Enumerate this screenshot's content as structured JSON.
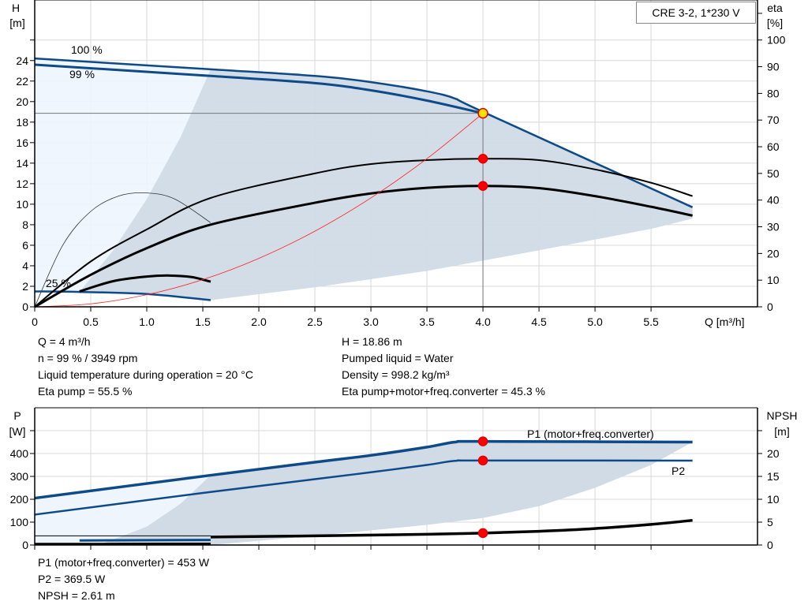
{
  "title_box": "CRE 3-2, 1*230 V",
  "top_info": {
    "left": [
      "Q = 4 m³/h",
      "n = 99 % / 3949 rpm",
      "Liquid temperature during operation = 20 °C",
      "Eta pump = 55.5 %"
    ],
    "right": [
      "H = 18.86 m",
      "Pumped liquid = Water",
      "Density = 998.2 kg/m³",
      "Eta pump+motor+freq.converter = 45.3 %"
    ]
  },
  "bottom_info": [
    "P1 (motor+freq.converter) = 453 W",
    "P2 = 369.5 W",
    "NPSH = 2.61 m"
  ],
  "colors": {
    "curve_blue": "#0d4a87",
    "region_gray": "#d0dbe6",
    "region_light": "#eef5fd",
    "duty_point": "#ff0000",
    "system_curve": "#ff2020",
    "grid": "#d8d8d8"
  },
  "chart_data": [
    {
      "type": "line",
      "name": "head-chart",
      "ylabel": "H",
      "yunit": "[m]",
      "y2label": "eta",
      "y2unit": "[%]",
      "xlabel": "Q [m³/h]",
      "xlim": [
        0,
        6.45
      ],
      "ylim": [
        0,
        29.9
      ],
      "y2lim": [
        0,
        115
      ],
      "xticks": [
        0,
        0.5,
        1.0,
        1.5,
        2.0,
        2.5,
        3.0,
        3.5,
        4.0,
        4.5,
        5.0,
        5.5
      ],
      "xtick_labels": [
        "0",
        "0.5",
        "1.0",
        "1.5",
        "2.0",
        "2.5",
        "3.0",
        "3.5",
        "4.0",
        "4.5",
        "5.0",
        "5.5"
      ],
      "yticks": [
        0,
        2,
        4,
        6,
        8,
        10,
        12,
        14,
        16,
        18,
        20,
        22,
        24,
        26
      ],
      "ytick_labels": [
        "0",
        "2",
        "4",
        "6",
        "8",
        "10",
        "12",
        "14",
        "16",
        "18",
        "20",
        "22",
        "24",
        ""
      ],
      "y2ticks": [
        0,
        10,
        20,
        30,
        40,
        50,
        60,
        70,
        80,
        90,
        100,
        110
      ],
      "y2tick_labels": [
        "0",
        "10",
        "20",
        "30",
        "40",
        "50",
        "60",
        "70",
        "80",
        "90",
        "100",
        ""
      ],
      "grid": true,
      "curve_labels": [
        "100 %",
        "99 %",
        "25 %"
      ],
      "series": [
        {
          "id": "h-100",
          "axis": "y",
          "points": [
            [
              0,
              24.2
            ],
            [
              1.57,
              23.15
            ],
            [
              2.5,
              22.5
            ],
            [
              3.0,
              21.9
            ],
            [
              3.5,
              21.0
            ],
            [
              3.75,
              20.3
            ],
            [
              4.0,
              19.0
            ],
            [
              5.87,
              9.7
            ]
          ]
        },
        {
          "id": "h-99",
          "axis": "y",
          "points": [
            [
              0,
              23.6
            ],
            [
              1.57,
              22.5
            ],
            [
              2.5,
              21.8
            ],
            [
              3.0,
              21.1
            ],
            [
              3.5,
              20.1
            ],
            [
              4.0,
              18.86
            ]
          ]
        },
        {
          "id": "h-25",
          "axis": "y",
          "points": [
            [
              0,
              1.5
            ],
            [
              0.4,
              1.45
            ],
            [
              1.0,
              1.25
            ],
            [
              1.57,
              0.65
            ]
          ]
        },
        {
          "id": "eta-pump",
          "axis": "y2",
          "points": [
            [
              0,
              0
            ],
            [
              0.5,
              17
            ],
            [
              1.0,
              29
            ],
            [
              1.57,
              40.8
            ],
            [
              2.5,
              50
            ],
            [
              3.0,
              53.5
            ],
            [
              3.5,
              55
            ],
            [
              4.0,
              55.5
            ],
            [
              4.5,
              55
            ],
            [
              5.0,
              51.5
            ],
            [
              5.5,
              46.5
            ],
            [
              5.87,
              41.5
            ]
          ]
        },
        {
          "id": "eta-total",
          "axis": "y2",
          "points": [
            [
              0,
              0
            ],
            [
              0.5,
              12
            ],
            [
              1.0,
              22
            ],
            [
              1.57,
              30.8
            ],
            [
              2.5,
              39
            ],
            [
              3.0,
              42.5
            ],
            [
              3.5,
              44.6
            ],
            [
              4.0,
              45.3
            ],
            [
              4.5,
              44.5
            ],
            [
              5.0,
              41.5
            ],
            [
              5.5,
              37.5
            ],
            [
              5.87,
              34.2
            ]
          ]
        },
        {
          "id": "eta-pump-25",
          "axis": "y",
          "points": [
            [
              0,
              0
            ],
            [
              0.25,
              6
            ],
            [
              0.5,
              9.3
            ],
            [
              0.75,
              10.8
            ],
            [
              1.0,
              11.1
            ],
            [
              1.25,
              10.5
            ],
            [
              1.57,
              8.2
            ]
          ]
        },
        {
          "id": "eta-total-25",
          "axis": "y",
          "points": [
            [
              0.4,
              1.5
            ],
            [
              0.7,
              2.5
            ],
            [
              1.0,
              2.95
            ],
            [
              1.2,
              3.05
            ],
            [
              1.4,
              2.9
            ],
            [
              1.57,
              2.45
            ]
          ]
        },
        {
          "id": "system-curve",
          "axis": "y",
          "points": [
            [
              0,
              0
            ],
            [
              0.5,
              0.29
            ],
            [
              1.0,
              1.18
            ],
            [
              1.5,
              2.65
            ],
            [
              2.0,
              4.72
            ],
            [
              2.5,
              7.37
            ],
            [
              3.0,
              10.61
            ],
            [
              3.5,
              14.44
            ],
            [
              4.0,
              18.86
            ]
          ]
        }
      ],
      "duty_points": [
        {
          "q": 4.0,
          "h": 18.86
        },
        {
          "q": 4.0,
          "eta": 55.5
        },
        {
          "q": 4.0,
          "eta": 45.3
        }
      ]
    },
    {
      "type": "line",
      "name": "power-chart",
      "ylabel": "P",
      "yunit": "[W]",
      "y2label": "NPSH",
      "y2unit": "[m]",
      "xlim": [
        0,
        6.45
      ],
      "ylim": [
        0,
        600
      ],
      "y2lim": [
        0,
        30
      ],
      "yticks": [
        0,
        100,
        200,
        300,
        400,
        500
      ],
      "ytick_labels": [
        "0",
        "100",
        "200",
        "300",
        "400",
        ""
      ],
      "y2ticks": [
        0,
        5,
        10,
        15,
        20,
        25
      ],
      "y2tick_labels": [
        "0",
        "5",
        "10",
        "15",
        "20",
        ""
      ],
      "xticks": [
        0,
        0.5,
        1.0,
        1.5,
        2.0,
        2.5,
        3.0,
        3.5,
        4.0,
        4.5,
        5.0,
        5.5
      ],
      "grid": true,
      "curve_labels": [
        "P1 (motor+freq.converter)",
        "P2"
      ],
      "series": [
        {
          "id": "p1",
          "axis": "y",
          "points": [
            [
              0,
              205
            ],
            [
              1.57,
              305
            ],
            [
              2.5,
              362
            ],
            [
              3.0,
              392
            ],
            [
              3.5,
              428
            ],
            [
              3.75,
              450
            ],
            [
              4.0,
              453
            ],
            [
              5.87,
              450
            ]
          ]
        },
        {
          "id": "p2",
          "axis": "y",
          "points": [
            [
              0,
              133
            ],
            [
              1.57,
              232
            ],
            [
              2.5,
              288
            ],
            [
              3.0,
              318
            ],
            [
              3.5,
              350
            ],
            [
              3.75,
              368
            ],
            [
              4.0,
              369.5
            ],
            [
              5.87,
              369
            ]
          ]
        },
        {
          "id": "npsh",
          "axis": "y2",
          "points": [
            [
              1.57,
              1.75
            ],
            [
              2.5,
              2.0
            ],
            [
              3.5,
              2.35
            ],
            [
              4.0,
              2.61
            ],
            [
              4.5,
              3.0
            ],
            [
              5.0,
              3.6
            ],
            [
              5.5,
              4.5
            ],
            [
              5.87,
              5.4
            ]
          ]
        },
        {
          "id": "p1-25",
          "axis": "y",
          "points": [
            [
              0,
              40
            ],
            [
              1.57,
              40
            ]
          ]
        },
        {
          "id": "p2-25",
          "axis": "y",
          "points": [
            [
              0.4,
              20
            ],
            [
              1.57,
              22
            ]
          ]
        },
        {
          "id": "npsh-25",
          "axis": "y",
          "points": [
            [
              0,
              5
            ],
            [
              1.57,
              6
            ]
          ]
        }
      ],
      "duty_points": [
        {
          "q": 4.0,
          "p": 453
        },
        {
          "q": 4.0,
          "p": 369.5
        },
        {
          "q": 4.0,
          "npsh": 2.61
        }
      ]
    }
  ]
}
